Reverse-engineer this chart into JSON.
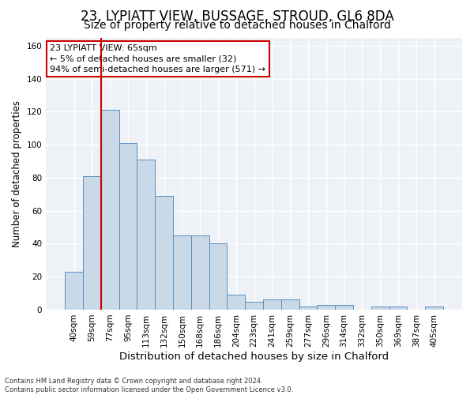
{
  "title1": "23, LYPIATT VIEW, BUSSAGE, STROUD, GL6 8DA",
  "title2": "Size of property relative to detached houses in Chalford",
  "xlabel": "Distribution of detached houses by size in Chalford",
  "ylabel": "Number of detached properties",
  "footer1": "Contains HM Land Registry data © Crown copyright and database right 2024.",
  "footer2": "Contains public sector information licensed under the Open Government Licence v3.0.",
  "bin_labels": [
    "40sqm",
    "59sqm",
    "77sqm",
    "95sqm",
    "113sqm",
    "132sqm",
    "150sqm",
    "168sqm",
    "186sqm",
    "204sqm",
    "223sqm",
    "241sqm",
    "259sqm",
    "277sqm",
    "296sqm",
    "314sqm",
    "332sqm",
    "350sqm",
    "369sqm",
    "387sqm",
    "405sqm"
  ],
  "bar_values": [
    23,
    81,
    121,
    101,
    91,
    69,
    45,
    45,
    40,
    9,
    5,
    6,
    6,
    2,
    3,
    3,
    0,
    2,
    2,
    0,
    2
  ],
  "bar_color": "#c9d9e8",
  "bar_edge_color": "#5a8fc0",
  "vline_x": 1.5,
  "vline_color": "#cc0000",
  "annotation_text": "23 LYPIATT VIEW: 65sqm\n← 5% of detached houses are smaller (32)\n94% of semi-detached houses are larger (571) →",
  "annotation_box_color": "#ffffff",
  "annotation_box_edge": "#cc0000",
  "ylim": [
    0,
    165
  ],
  "yticks": [
    0,
    20,
    40,
    60,
    80,
    100,
    120,
    140,
    160
  ],
  "background_color": "#eef2f7",
  "grid_color": "#ffffff",
  "title1_fontsize": 12,
  "title2_fontsize": 10,
  "xlabel_fontsize": 9.5,
  "ylabel_fontsize": 8.5,
  "tick_fontsize": 7.5,
  "annotation_fontsize": 8,
  "footer_fontsize": 6
}
